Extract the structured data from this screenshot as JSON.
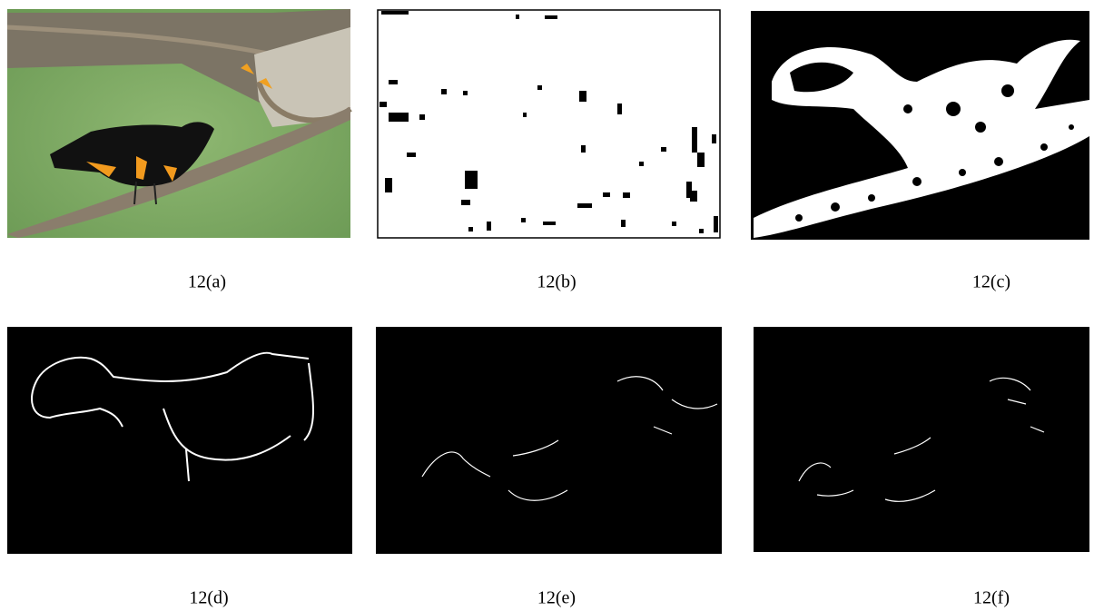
{
  "figures": [
    {
      "caption": "12(a)"
    },
    {
      "caption": "12(b)"
    },
    {
      "caption": "12(c)"
    },
    {
      "caption": "12(d)"
    },
    {
      "caption": "12(e)"
    },
    {
      "caption": "12(f)"
    }
  ]
}
